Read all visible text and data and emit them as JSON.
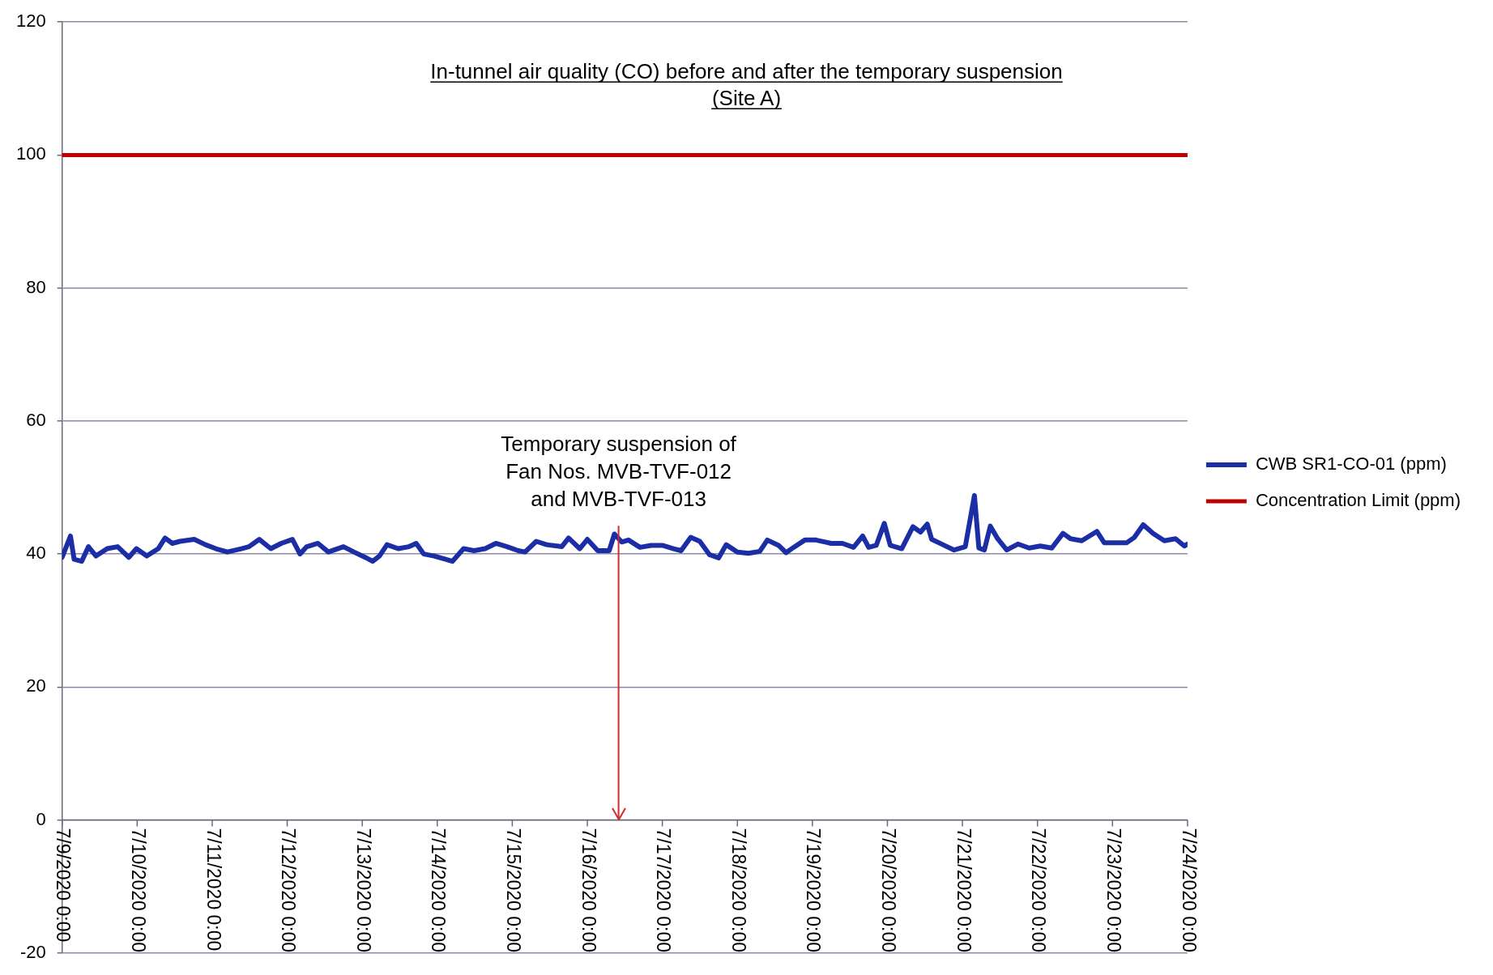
{
  "chart_data": {
    "type": "line",
    "title": "In-tunnel air quality (CO) before and after the temporary suspension\n(Site A)",
    "x": [
      "2020-07-09T00:00",
      "2020-07-09T02:40",
      "2020-07-09T03:50",
      "2020-07-09T06:15",
      "2020-07-09T08:25",
      "2020-07-09T10:50",
      "2020-07-09T14:25",
      "2020-07-09T17:45",
      "2020-07-09T21:20",
      "2020-07-09T23:45",
      "2020-07-10T03:05",
      "2020-07-10T06:45",
      "2020-07-10T08:55",
      "2020-07-10T11:15",
      "2020-07-10T13:40",
      "2020-07-10T18:15",
      "2020-07-10T21:50",
      "2020-07-11T01:10",
      "2020-07-11T04:50",
      "2020-07-11T09:20",
      "2020-07-11T11:45",
      "2020-07-11T15:05",
      "2020-07-11T18:45",
      "2020-07-11T22:05",
      "2020-07-12T01:40",
      "2020-07-12T04:05",
      "2020-07-12T06:15",
      "2020-07-12T09:50",
      "2020-07-12T13:10",
      "2020-07-12T18:00",
      "2020-07-12T21:20",
      "2020-07-13T00:55",
      "2020-07-13T03:20",
      "2020-07-13T05:30",
      "2020-07-13T07:55",
      "2020-07-13T11:30",
      "2020-07-13T14:55",
      "2020-07-13T17:15",
      "2020-07-13T19:40",
      "2020-07-13T23:00",
      "2020-07-14T02:40",
      "2020-07-14T04:50",
      "2020-07-14T08:25",
      "2020-07-14T11:45",
      "2020-07-14T15:20",
      "2020-07-14T18:45",
      "2020-07-14T22:20",
      "2020-07-15T01:55",
      "2020-07-15T04:05",
      "2020-07-15T07:40",
      "2020-07-15T11:00",
      "2020-07-15T15:50",
      "2020-07-15T18:00",
      "2020-07-15T21:35",
      "2020-07-16T00:00",
      "2020-07-16T03:20",
      "2020-07-16T07:00",
      "2020-07-16T08:40",
      "2020-07-16T11:00",
      "2020-07-16T13:10",
      "2020-07-16T16:50",
      "2020-07-16T20:25",
      "2020-07-17T00:00",
      "2020-07-17T03:35",
      "2020-07-17T06:00",
      "2020-07-17T09:05",
      "2020-07-17T12:00",
      "2020-07-17T15:05",
      "2020-07-17T18:00",
      "2020-07-17T20:25",
      "2020-07-18T00:00",
      "2020-07-18T03:35",
      "2020-07-18T07:10",
      "2020-07-18T09:35",
      "2020-07-18T13:10",
      "2020-07-18T15:35",
      "2020-07-18T18:00",
      "2020-07-18T21:35",
      "2020-07-19T01:10",
      "2020-07-19T06:00",
      "2020-07-19T09:35",
      "2020-07-19T13:10",
      "2020-07-19T16:05",
      "2020-07-19T18:00",
      "2020-07-19T20:25",
      "2020-07-19T23:00",
      "2020-07-20T00:55",
      "2020-07-20T04:35",
      "2020-07-20T08:10",
      "2020-07-20T10:35",
      "2020-07-20T12:45",
      "2020-07-20T14:10",
      "2020-07-20T17:45",
      "2020-07-20T21:20",
      "2020-07-21T00:55",
      "2020-07-21T03:50",
      "2020-07-21T05:15",
      "2020-07-21T07:00",
      "2020-07-21T08:55",
      "2020-07-21T11:15",
      "2020-07-21T14:10",
      "2020-07-21T17:45",
      "2020-07-21T21:20",
      "2020-07-22T00:55",
      "2020-07-22T04:35",
      "2020-07-22T08:10",
      "2020-07-22T10:35",
      "2020-07-22T14:10",
      "2020-07-22T19:00",
      "2020-07-22T21:20",
      "2020-07-23T00:55",
      "2020-07-23T04:35",
      "2020-07-23T07:00",
      "2020-07-23T09:50",
      "2020-07-23T13:00",
      "2020-07-23T16:35",
      "2020-07-23T20:10",
      "2020-07-23T23:00",
      "2020-07-24T00:00"
    ],
    "series": [
      {
        "name": "CWB SR1-CO-01 (ppm)",
        "color": "#1c2ea5",
        "values": [
          39.5,
          42.7,
          39.2,
          38.9,
          41.1,
          39.7,
          40.8,
          41.1,
          39.5,
          40.8,
          39.7,
          40.8,
          42.4,
          41.6,
          41.9,
          42.2,
          41.4,
          40.8,
          40.3,
          40.8,
          41.1,
          42.2,
          40.8,
          41.6,
          42.2,
          40.0,
          41.1,
          41.6,
          40.3,
          41.1,
          40.3,
          39.5,
          38.9,
          39.7,
          41.4,
          40.8,
          41.1,
          41.6,
          40.0,
          39.7,
          39.2,
          38.9,
          40.8,
          40.5,
          40.8,
          41.6,
          41.1,
          40.5,
          40.3,
          41.9,
          41.4,
          41.1,
          42.4,
          40.8,
          42.2,
          40.5,
          40.5,
          43.0,
          41.8,
          42.1,
          41.0,
          41.3,
          41.3,
          40.8,
          40.5,
          42.5,
          41.9,
          39.9,
          39.4,
          41.4,
          40.3,
          40.1,
          40.4,
          42.1,
          41.3,
          40.2,
          41.0,
          42.1,
          42.1,
          41.6,
          41.6,
          41.0,
          42.7,
          41.0,
          41.3,
          44.6,
          41.3,
          40.8,
          44.1,
          43.3,
          44.5,
          42.2,
          41.4,
          40.6,
          41.1,
          48.8,
          40.9,
          40.6,
          44.2,
          42.3,
          40.6,
          41.5,
          40.9,
          41.2,
          40.9,
          43.1,
          42.3,
          42.0,
          43.4,
          41.7,
          41.7,
          41.7,
          42.5,
          44.4,
          43.1,
          42.0,
          42.3,
          41.2,
          41.5
        ]
      },
      {
        "name": "Concentration Limit (ppm)",
        "color": "#c00000",
        "x": [
          "2020-07-09T00:00",
          "2020-07-24T00:00"
        ],
        "values": [
          100,
          100
        ]
      }
    ],
    "xlim": [
      "2020-07-09T00:00",
      "2020-07-24T00:00"
    ],
    "xticks": [
      {
        "value": "2020-07-09T00:00",
        "label": "7/9/2020 0:00"
      },
      {
        "value": "2020-07-10T00:00",
        "label": "7/10/2020 0:00"
      },
      {
        "value": "2020-07-11T00:00",
        "label": "7/11/2020 0:00"
      },
      {
        "value": "2020-07-12T00:00",
        "label": "7/12/2020 0:00"
      },
      {
        "value": "2020-07-13T00:00",
        "label": "7/13/2020 0:00"
      },
      {
        "value": "2020-07-14T00:00",
        "label": "7/14/2020 0:00"
      },
      {
        "value": "2020-07-15T00:00",
        "label": "7/15/2020 0:00"
      },
      {
        "value": "2020-07-16T00:00",
        "label": "7/16/2020 0:00"
      },
      {
        "value": "2020-07-17T00:00",
        "label": "7/17/2020 0:00"
      },
      {
        "value": "2020-07-18T00:00",
        "label": "7/18/2020 0:00"
      },
      {
        "value": "2020-07-19T00:00",
        "label": "7/19/2020 0:00"
      },
      {
        "value": "2020-07-20T00:00",
        "label": "7/20/2020 0:00"
      },
      {
        "value": "2020-07-21T00:00",
        "label": "7/21/2020 0:00"
      },
      {
        "value": "2020-07-22T00:00",
        "label": "7/22/2020 0:00"
      },
      {
        "value": "2020-07-23T00:00",
        "label": "7/23/2020 0:00"
      },
      {
        "value": "2020-07-24T00:00",
        "label": "7/24/2020 0:00"
      }
    ],
    "ylim": [
      -20,
      120
    ],
    "yticks": [
      -20,
      0,
      20,
      40,
      60,
      80,
      100,
      120
    ],
    "grid": "y",
    "legend": "right",
    "marker": "none",
    "line_style": "solid",
    "ref_lines": [
      {
        "axis": "x",
        "value": "2020-07-16T10:00",
        "label": "Temporary suspension of\nFan Nos. MVB-TVF-012\nand MVB-TVF-013",
        "color": "#d42a2a"
      }
    ]
  }
}
